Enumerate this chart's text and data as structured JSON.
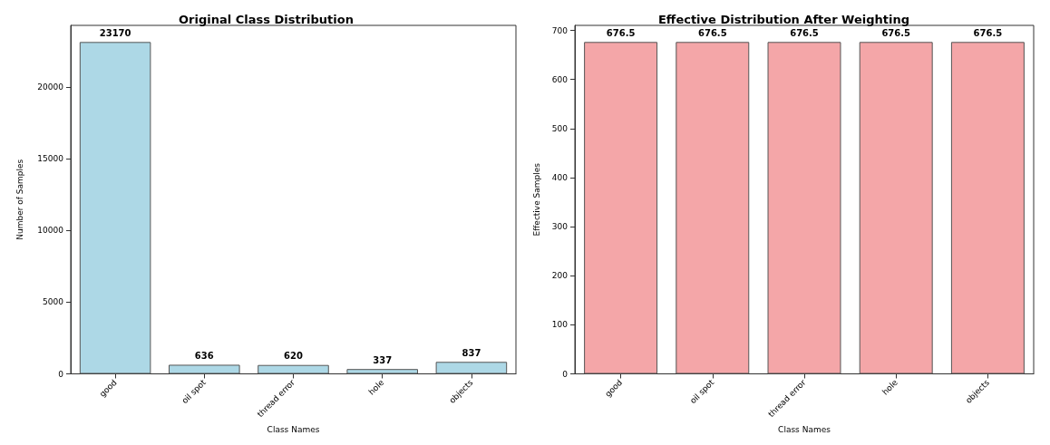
{
  "chart_data": [
    {
      "type": "bar",
      "title": "Original Class Distribution",
      "xlabel": "Class Names",
      "ylabel": "Number of Samples",
      "categories": [
        "good",
        "oil spot",
        "thread error",
        "hole",
        "objects"
      ],
      "values": [
        23170,
        636,
        620,
        337,
        837
      ],
      "color": "#add8e6",
      "ylim": [
        0,
        24330
      ],
      "yticks": [
        0,
        5000,
        10000,
        15000,
        20000
      ],
      "data_labels": true,
      "grid": false
    },
    {
      "type": "bar",
      "title": "Effective Distribution After Weighting",
      "xlabel": "Class Names",
      "ylabel": "Effective Samples",
      "categories": [
        "good",
        "oil spot",
        "thread error",
        "hole",
        "objects"
      ],
      "values": [
        676.5,
        676.5,
        676.5,
        676.5,
        676.5
      ],
      "color": "#f4a6a8",
      "ylim": [
        0,
        710.3
      ],
      "yticks": [
        0,
        100,
        200,
        300,
        400,
        500,
        600,
        700
      ],
      "data_labels": true,
      "grid": false
    }
  ]
}
